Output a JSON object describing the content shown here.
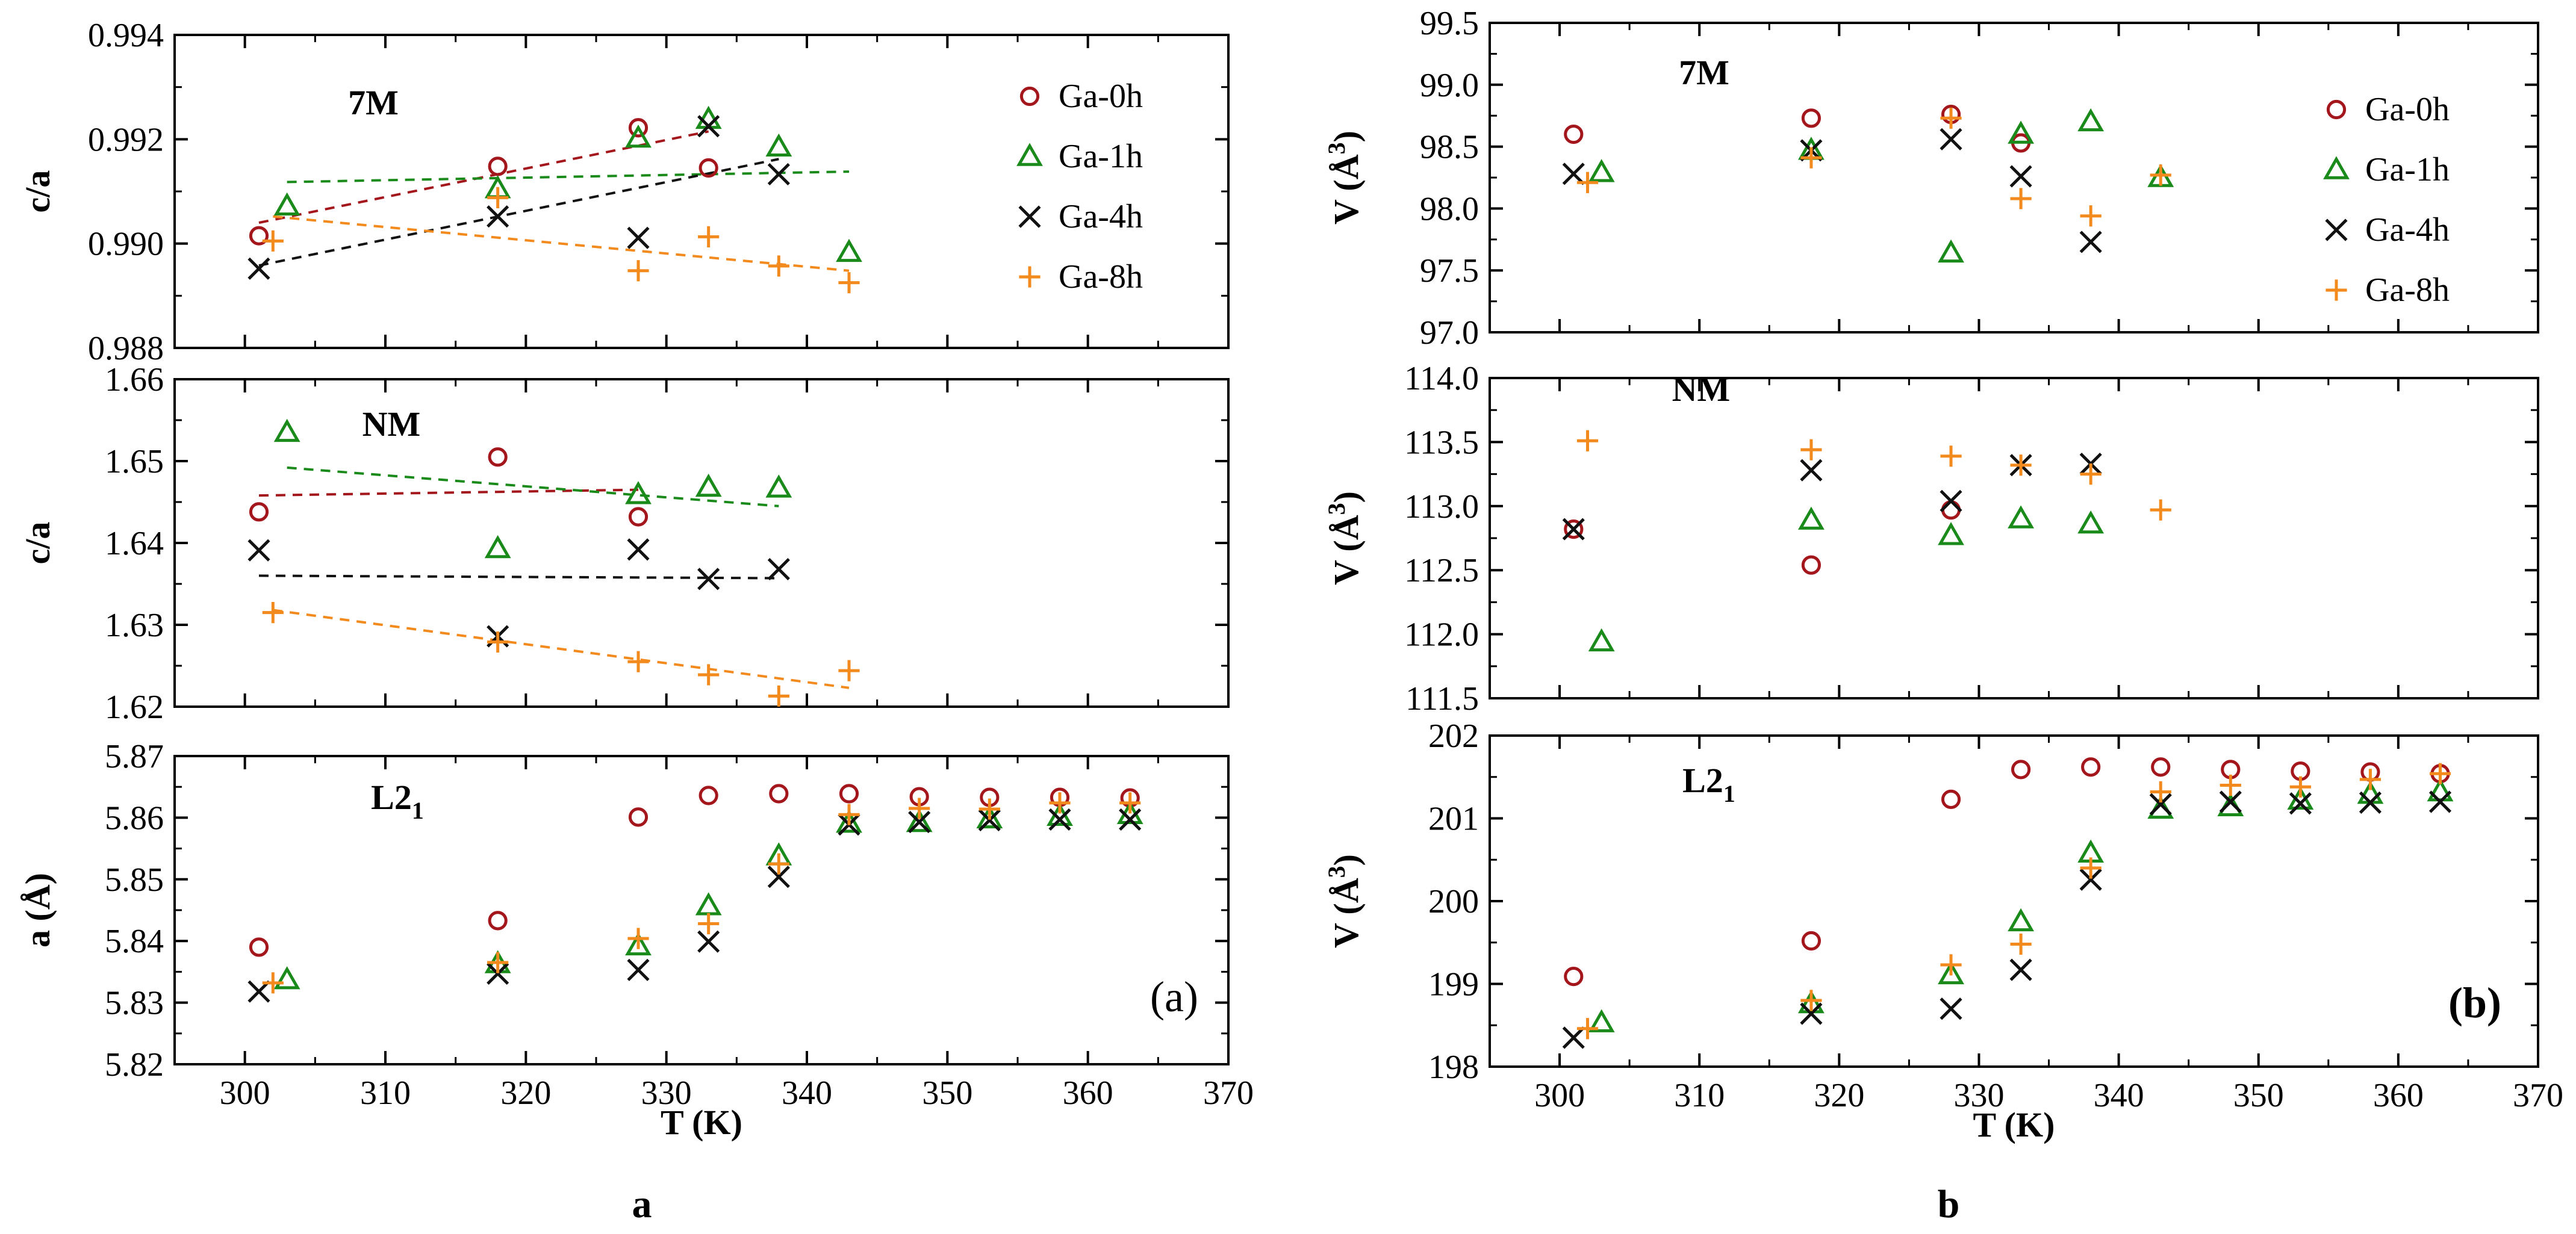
{
  "figure": {
    "type": "scatter",
    "captions": [
      "a",
      "b"
    ],
    "legend": {
      "position": "top-right",
      "entries": [
        {
          "name": "Ga-0h",
          "marker": "circle",
          "color": "#a3161b"
        },
        {
          "name": "Ga-1h",
          "marker": "triangle",
          "color": "#1a8a1a"
        },
        {
          "name": "Ga-4h",
          "marker": "x",
          "color": "#111111"
        },
        {
          "name": "Ga-8h",
          "marker": "plus",
          "color": "#f28a1e"
        }
      ]
    }
  },
  "chart_data": [
    {
      "figure": "a",
      "panel": "7M",
      "type": "scatter",
      "title": "7M",
      "xlabel": "T (K)",
      "ylabel": "c/a",
      "xlim": [
        295,
        370
      ],
      "ylim": [
        0.988,
        0.994
      ],
      "xticks": [
        "300",
        "310",
        "320",
        "330",
        "340",
        "350",
        "360",
        "370"
      ],
      "yticks": [
        "0.988",
        "0.990",
        "0.992",
        "0.994"
      ],
      "show_legend": true,
      "series": [
        {
          "name": "Ga-0h",
          "x": [
            301,
            318,
            328,
            333
          ],
          "y": [
            0.99015,
            0.99148,
            0.99222,
            0.99145
          ],
          "fit": [
            [
              301,
              0.9904
            ],
            [
              333,
              0.99215
            ]
          ]
        },
        {
          "name": "Ga-1h",
          "x": [
            303,
            318,
            328,
            333,
            338,
            343
          ],
          "y": [
            0.99072,
            0.99105,
            0.99202,
            0.99238,
            0.99185,
            0.98983
          ],
          "fit": [
            [
              303,
              0.99118
            ],
            [
              343,
              0.99138
            ]
          ]
        },
        {
          "name": "Ga-4h",
          "x": [
            301,
            318,
            328,
            333,
            338
          ],
          "y": [
            0.98952,
            0.99052,
            0.99011,
            0.99225,
            0.99133
          ],
          "fit": [
            [
              301,
              0.98958
            ],
            [
              338,
              0.99162
            ]
          ]
        },
        {
          "name": "Ga-8h",
          "x": [
            302,
            318,
            328,
            333,
            338,
            343
          ],
          "y": [
            0.99005,
            0.99088,
            0.98948,
            0.99013,
            0.98957,
            0.98925
          ],
          "fit": [
            [
              302,
              0.99052
            ],
            [
              343,
              0.98948
            ]
          ]
        }
      ]
    },
    {
      "figure": "a",
      "panel": "NM",
      "type": "scatter",
      "title": "NM",
      "xlabel": "T (K)",
      "ylabel": "c/a",
      "xlim": [
        295,
        370
      ],
      "ylim": [
        1.62,
        1.66
      ],
      "xticks": [
        "300",
        "310",
        "320",
        "330",
        "340",
        "350",
        "360",
        "370"
      ],
      "yticks": [
        "1.62",
        "1.63",
        "1.64",
        "1.65",
        "1.66"
      ],
      "show_legend": false,
      "series": [
        {
          "name": "Ga-0h",
          "x": [
            301,
            318,
            328
          ],
          "y": [
            1.6438,
            1.6505,
            1.6432
          ],
          "fit": [
            [
              301,
              1.6458
            ],
            [
              328,
              1.6465
            ]
          ]
        },
        {
          "name": "Ga-1h",
          "x": [
            303,
            318,
            328,
            333,
            338
          ],
          "y": [
            1.6535,
            1.6393,
            1.6459,
            1.6468,
            1.6467
          ],
          "fit": [
            [
              303,
              1.6492
            ],
            [
              338,
              1.6445
            ]
          ]
        },
        {
          "name": "Ga-4h",
          "x": [
            301,
            318,
            328,
            333,
            338
          ],
          "y": [
            1.6391,
            1.6286,
            1.6392,
            1.6356,
            1.6368
          ],
          "fit": [
            [
              301,
              1.636
            ],
            [
              338,
              1.6357
            ]
          ]
        },
        {
          "name": "Ga-8h",
          "x": [
            302,
            318,
            328,
            333,
            338,
            343
          ],
          "y": [
            1.6315,
            1.6279,
            1.6255,
            1.6239,
            1.6213,
            1.6244
          ],
          "fit": [
            [
              302,
              1.6318
            ],
            [
              343,
              1.6223
            ]
          ]
        }
      ]
    },
    {
      "figure": "a",
      "panel": "L21",
      "type": "scatter",
      "title": "L2",
      "title_subscript": "1",
      "xlabel": "T (K)",
      "ylabel": "a (Å)",
      "xlim": [
        295,
        370
      ],
      "ylim": [
        5.82,
        5.87
      ],
      "xticks": [
        "300",
        "310",
        "320",
        "330",
        "340",
        "350",
        "360",
        "370"
      ],
      "yticks": [
        "5.82",
        "5.83",
        "5.84",
        "5.85",
        "5.86",
        "5.87"
      ],
      "show_legend": false,
      "corner_label": "(a)",
      "series": [
        {
          "name": "Ga-0h",
          "x": [
            301,
            318,
            328,
            333,
            338,
            343,
            348,
            353,
            358,
            363
          ],
          "y": [
            5.839,
            5.8433,
            5.8601,
            5.8636,
            5.8639,
            5.8639,
            5.8634,
            5.8633,
            5.8633,
            5.8632
          ]
        },
        {
          "name": "Ga-1h",
          "x": [
            303,
            318,
            328,
            333,
            338,
            343,
            348,
            353,
            358,
            363
          ],
          "y": [
            5.8337,
            5.8363,
            5.8392,
            5.8457,
            5.8538,
            5.8591,
            5.8592,
            5.8598,
            5.8602,
            5.8605
          ]
        },
        {
          "name": "Ga-4h",
          "x": [
            301,
            318,
            328,
            333,
            338,
            343,
            348,
            353,
            358,
            363
          ],
          "y": [
            5.8318,
            5.8347,
            5.8353,
            5.8399,
            5.8504,
            5.8589,
            5.8593,
            5.8596,
            5.8597,
            5.8597
          ]
        },
        {
          "name": "Ga-8h",
          "x": [
            302,
            318,
            328,
            333,
            338,
            343,
            348,
            353,
            358,
            363
          ],
          "y": [
            5.8332,
            5.8365,
            5.8404,
            5.8428,
            5.8525,
            5.8605,
            5.8615,
            5.8614,
            5.8624,
            5.8624
          ]
        }
      ]
    },
    {
      "figure": "b",
      "panel": "7M",
      "type": "scatter",
      "title": "7M",
      "xlabel": "T (K)",
      "ylabel": "V (Å3)",
      "xlim": [
        295,
        370
      ],
      "ylim": [
        97.0,
        99.5
      ],
      "xticks": [
        "300",
        "310",
        "320",
        "330",
        "340",
        "350",
        "360",
        "370"
      ],
      "yticks": [
        "97.0",
        "97.5",
        "98.0",
        "98.5",
        "99.0",
        "99.5"
      ],
      "show_legend": true,
      "series": [
        {
          "name": "Ga-0h",
          "x": [
            301,
            318,
            328,
            333
          ],
          "y": [
            98.6,
            98.73,
            98.76,
            98.53
          ]
        },
        {
          "name": "Ga-1h",
          "x": [
            303,
            318,
            328,
            333,
            338,
            343
          ],
          "y": [
            98.29,
            98.47,
            97.64,
            98.6,
            98.7,
            98.25
          ]
        },
        {
          "name": "Ga-4h",
          "x": [
            301,
            318,
            328,
            333,
            338
          ],
          "y": [
            98.28,
            98.47,
            98.56,
            98.26,
            97.73
          ]
        },
        {
          "name": "Ga-8h",
          "x": [
            302,
            318,
            328,
            333,
            338,
            343
          ],
          "y": [
            98.21,
            98.41,
            98.73,
            98.08,
            97.94,
            98.27
          ]
        }
      ]
    },
    {
      "figure": "b",
      "panel": "NM",
      "type": "scatter",
      "title": "NM",
      "xlabel": "T (K)",
      "ylabel": "V (Å3)",
      "xlim": [
        295,
        370
      ],
      "ylim": [
        111.5,
        114.0
      ],
      "xticks": [
        "300",
        "310",
        "320",
        "330",
        "340",
        "350",
        "360",
        "370"
      ],
      "yticks": [
        "111.5",
        "112.0",
        "112.5",
        "113.0",
        "113.5",
        "114.0"
      ],
      "show_legend": false,
      "series": [
        {
          "name": "Ga-0h",
          "x": [
            301,
            318,
            328
          ],
          "y": [
            112.82,
            112.54,
            112.97
          ]
        },
        {
          "name": "Ga-1h",
          "x": [
            303,
            318,
            328,
            333,
            338
          ],
          "y": [
            111.94,
            112.89,
            112.77,
            112.9,
            112.86
          ]
        },
        {
          "name": "Ga-4h",
          "x": [
            301,
            318,
            328,
            333,
            338
          ],
          "y": [
            112.82,
            113.28,
            113.04,
            113.32,
            113.33
          ]
        },
        {
          "name": "Ga-8h",
          "x": [
            302,
            318,
            328,
            333,
            338,
            343
          ],
          "y": [
            113.51,
            113.44,
            113.39,
            113.32,
            113.25,
            112.97
          ]
        }
      ]
    },
    {
      "figure": "b",
      "panel": "L21",
      "type": "scatter",
      "title": "L2",
      "title_subscript": "1",
      "xlabel": "T (K)",
      "ylabel": "V (Å3)",
      "xlim": [
        295,
        370
      ],
      "ylim": [
        198.0,
        202.0
      ],
      "xticks": [
        "300",
        "310",
        "320",
        "330",
        "340",
        "350",
        "360",
        "370"
      ],
      "yticks": [
        "198",
        "199",
        "200",
        "201",
        "202"
      ],
      "show_legend": false,
      "corner_label": "(b)",
      "series": [
        {
          "name": "Ga-0h",
          "x": [
            301,
            318,
            328,
            333,
            338,
            343,
            348,
            353,
            358,
            363
          ],
          "y": [
            199.09,
            199.52,
            201.23,
            201.59,
            201.62,
            201.62,
            201.59,
            201.57,
            201.56,
            201.54
          ]
        },
        {
          "name": "Ga-1h",
          "x": [
            303,
            318,
            328,
            333,
            338,
            343,
            348,
            353,
            358,
            363
          ],
          "y": [
            198.53,
            198.76,
            199.11,
            199.75,
            200.58,
            201.11,
            201.14,
            201.22,
            201.29,
            201.32
          ]
        },
        {
          "name": "Ga-4h",
          "x": [
            301,
            318,
            328,
            333,
            338,
            343,
            348,
            353,
            358,
            363
          ],
          "y": [
            198.35,
            198.64,
            198.7,
            199.17,
            200.26,
            201.17,
            201.2,
            201.18,
            201.19,
            201.2
          ]
        },
        {
          "name": "Ga-8h",
          "x": [
            302,
            318,
            328,
            333,
            338,
            343,
            348,
            353,
            358,
            363
          ],
          "y": [
            198.46,
            198.8,
            199.23,
            199.48,
            200.4,
            201.32,
            201.4,
            201.38,
            201.47,
            201.54
          ]
        }
      ]
    }
  ]
}
